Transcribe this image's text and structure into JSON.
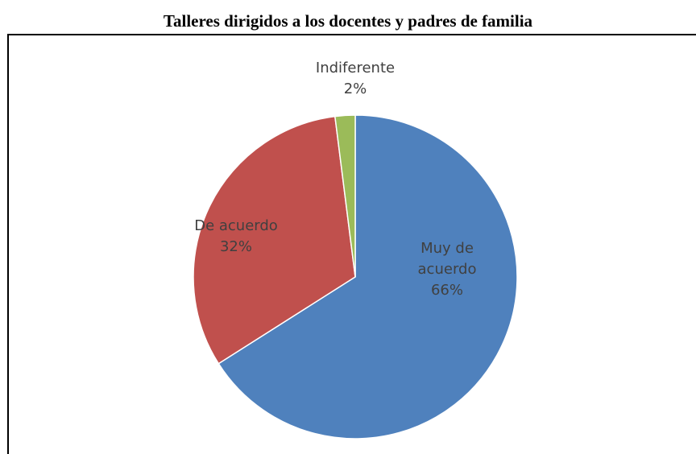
{
  "chart_data": {
    "type": "pie",
    "title": "Talleres dirigidos a los docentes y padres de familia",
    "categories": [
      "Muy de acuerdo",
      "De acuerdo",
      "Indiferente"
    ],
    "values": [
      66,
      32,
      2
    ],
    "value_labels": [
      "66%",
      "32%",
      "2%"
    ],
    "colors": [
      "#4f81bd",
      "#c0504d",
      "#9bbb59"
    ]
  }
}
